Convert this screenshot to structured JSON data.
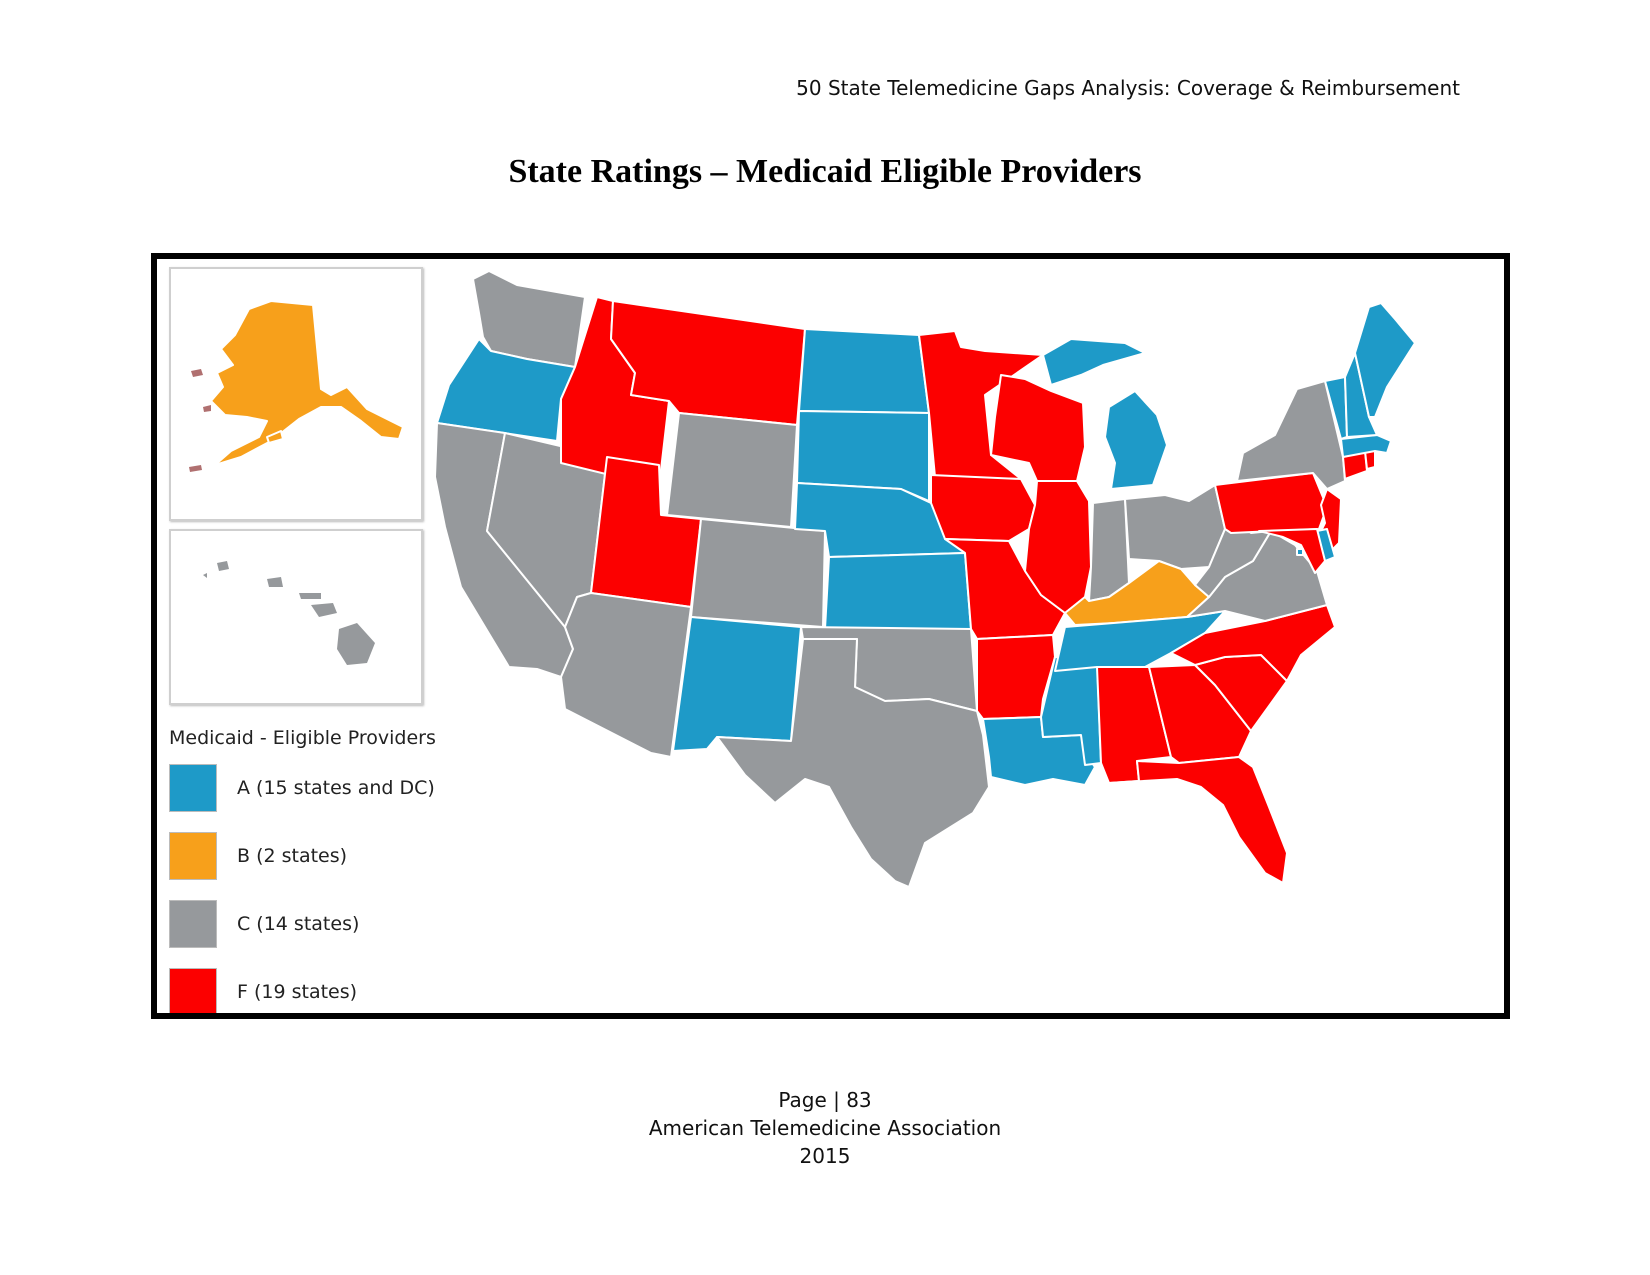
{
  "header": {
    "running_title": "50 State Telemedicine Gaps Analysis:  Coverage & Reimbursement"
  },
  "title": "State Ratings – Medicaid Eligible Providers",
  "colors": {
    "A": "#1e9ac8",
    "B": "#f7a01b",
    "C": "#96999c",
    "F": "#fc0000"
  },
  "legend": {
    "title": "Medicaid - Eligible Providers",
    "items": [
      {
        "grade": "A",
        "label": "A (15 states and DC)",
        "color": "#1e9ac8"
      },
      {
        "grade": "B",
        "label": "B (2 states)",
        "color": "#f7a01b"
      },
      {
        "grade": "C",
        "label": "C (14 states)",
        "color": "#96999c"
      },
      {
        "grade": "F",
        "label": "F (19 states)",
        "color": "#fc0000"
      }
    ]
  },
  "state_ratings": {
    "AK": "B",
    "HI": "C",
    "WA": "C",
    "OR": "A",
    "CA": "C",
    "NV": "C",
    "ID": "F",
    "MT": "F",
    "WY": "C",
    "UT": "F",
    "CO": "C",
    "AZ": "C",
    "NM": "A",
    "ND": "A",
    "SD": "A",
    "NE": "A",
    "KS": "A",
    "OK": "C",
    "TX": "C",
    "MN": "F",
    "IA": "F",
    "MO": "F",
    "AR": "F",
    "LA": "A",
    "WI": "F",
    "IL": "F",
    "MS": "A",
    "MI": "A",
    "IN": "C",
    "OH": "C",
    "KY": "B",
    "TN": "A",
    "AL": "F",
    "GA": "F",
    "FL": "F",
    "SC": "F",
    "NC": "F",
    "VA": "C",
    "WV": "C",
    "PA": "F",
    "NY": "C",
    "NJ": "F",
    "DE": "A",
    "MD": "F",
    "DC": "A",
    "CT": "F",
    "RI": "F",
    "MA": "A",
    "VT": "A",
    "NH": "A",
    "ME": "A"
  },
  "footer": {
    "page": "Page | 83",
    "organization": "American Telemedicine Association",
    "year": "2015"
  }
}
